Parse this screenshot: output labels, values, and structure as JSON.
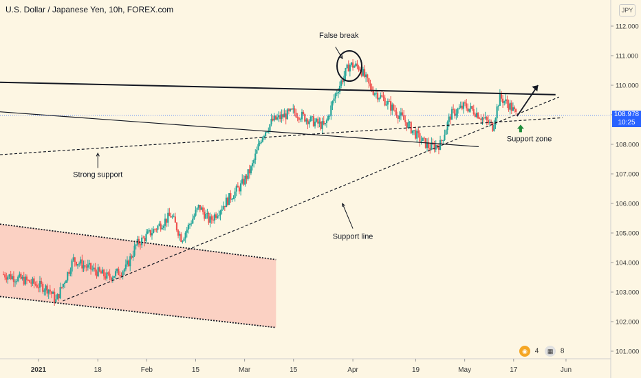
{
  "header": {
    "title": "U.S. Dollar / Japanese Yen, 10h, FOREX.com",
    "currency": "JPY"
  },
  "price_tag": {
    "price": "108.978",
    "countdown": "10:25"
  },
  "badges": {
    "events_count": "4",
    "flag_count": "8"
  },
  "colors": {
    "background": "#fdf6e3",
    "up_candle": "#26a69a",
    "down_candle": "#ef5350",
    "channel_fill": "#f9c4b8",
    "price_tag": "#2962ff",
    "annotation": "#131722",
    "support_arrow": "#1e8c3a"
  },
  "chart_data": {
    "type": "candlestick",
    "title": "U.S. Dollar / Japanese Yen, 10h, FOREX.com",
    "x_ticks": [
      "2021",
      "18",
      "Feb",
      "15",
      "Mar",
      "15",
      "Apr",
      "19",
      "May",
      "17",
      "Jun"
    ],
    "y_ticks": [
      101.0,
      102.0,
      103.0,
      104.0,
      105.0,
      106.0,
      107.0,
      108.0,
      109.0,
      110.0,
      111.0,
      112.0
    ],
    "ylim": [
      100.6,
      112.4
    ],
    "x_range": [
      "2020-12-21",
      "2021-06-03"
    ],
    "last_price": 108.978,
    "price_path": [
      {
        "date": "2020-12-22",
        "price": 103.6
      },
      {
        "date": "2020-12-28",
        "price": 103.4
      },
      {
        "date": "2021-01-04",
        "price": 103.1
      },
      {
        "date": "2021-01-06",
        "price": 102.7
      },
      {
        "date": "2021-01-11",
        "price": 104.1
      },
      {
        "date": "2021-01-14",
        "price": 103.9
      },
      {
        "date": "2021-01-21",
        "price": 103.5
      },
      {
        "date": "2021-01-26",
        "price": 103.8
      },
      {
        "date": "2021-01-29",
        "price": 104.6
      },
      {
        "date": "2021-02-03",
        "price": 105.1
      },
      {
        "date": "2021-02-08",
        "price": 105.6
      },
      {
        "date": "2021-02-11",
        "price": 104.8
      },
      {
        "date": "2021-02-16",
        "price": 105.9
      },
      {
        "date": "2021-02-19",
        "price": 105.4
      },
      {
        "date": "2021-02-24",
        "price": 106.1
      },
      {
        "date": "2021-02-28",
        "price": 106.6
      },
      {
        "date": "2021-03-03",
        "price": 107.2
      },
      {
        "date": "2021-03-06",
        "price": 108.3
      },
      {
        "date": "2021-03-09",
        "price": 108.8
      },
      {
        "date": "2021-03-15",
        "price": 109.1
      },
      {
        "date": "2021-03-20",
        "price": 108.8
      },
      {
        "date": "2021-03-24",
        "price": 108.6
      },
      {
        "date": "2021-03-27",
        "price": 109.7
      },
      {
        "date": "2021-03-31",
        "price": 110.7
      },
      {
        "date": "2021-04-03",
        "price": 110.6
      },
      {
        "date": "2021-04-06",
        "price": 109.9
      },
      {
        "date": "2021-04-10",
        "price": 109.5
      },
      {
        "date": "2021-04-15",
        "price": 108.9
      },
      {
        "date": "2021-04-20",
        "price": 108.2
      },
      {
        "date": "2021-04-23",
        "price": 107.9
      },
      {
        "date": "2021-04-26",
        "price": 108.0
      },
      {
        "date": "2021-04-29",
        "price": 109.0
      },
      {
        "date": "2021-05-03",
        "price": 109.3
      },
      {
        "date": "2021-05-06",
        "price": 109.1
      },
      {
        "date": "2021-05-09",
        "price": 108.8
      },
      {
        "date": "2021-05-11",
        "price": 108.6
      },
      {
        "date": "2021-05-13",
        "price": 109.6
      },
      {
        "date": "2021-05-16",
        "price": 109.3
      },
      {
        "date": "2021-05-18",
        "price": 108.95
      }
    ],
    "lines": [
      {
        "name": "resistance",
        "style": "solid",
        "from": [
          "2020-12-21",
          110.1
        ],
        "to": [
          "2021-05-29",
          109.68
        ]
      },
      {
        "name": "mid-line",
        "style": "solid",
        "from": [
          "2020-12-21",
          109.1
        ],
        "to": [
          "2021-05-07",
          107.92
        ]
      },
      {
        "name": "strong-support",
        "style": "dashed",
        "from": [
          "2020-12-21",
          107.65
        ],
        "to": [
          "2021-05-31",
          108.9
        ]
      },
      {
        "name": "support-line",
        "style": "dashed",
        "from": [
          "2021-01-08",
          102.7
        ],
        "to": [
          "2021-05-30",
          109.6
        ]
      },
      {
        "name": "channel-upper",
        "style": "dotted",
        "from": [
          "2020-12-21",
          105.3
        ],
        "to": [
          "2021-03-10",
          104.1
        ]
      },
      {
        "name": "channel-lower",
        "style": "dotted",
        "from": [
          "2020-12-21",
          102.85
        ],
        "to": [
          "2021-03-10",
          101.8
        ]
      }
    ],
    "annotations": [
      {
        "text": "False break",
        "date": "2021-03-28",
        "price": 111.6
      },
      {
        "text": "Strong support",
        "date": "2021-01-18",
        "price": 106.9
      },
      {
        "text": "Support line",
        "date": "2021-04-01",
        "price": 104.8
      },
      {
        "text": "Support zone",
        "date": "2021-05-19",
        "price": 108.1
      }
    ]
  }
}
